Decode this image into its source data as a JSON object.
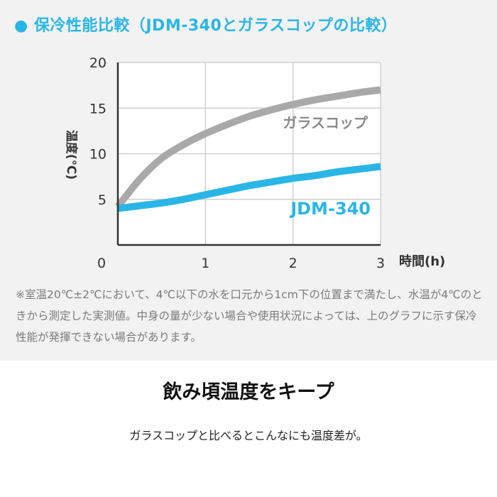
{
  "title_bullet": "●",
  "title": "保冷性能比較（JDM-340とガラスコップの比較）",
  "note": "※室温20℃±2℃において、4℃以下の水を口元から1cm下の位置まで満たし、水温が4℃のときから測定した実測値。中身の量が少ない場合や使用状況によっては、上のグラフに示す保冷性能が発揮できない場合があります。",
  "heading": "飲み頃温度をキープ",
  "subheading": "ガラスコップと比べるとこんなにも温度差が。",
  "chart_data": {
    "type": "line",
    "title": "保冷性能比較（JDM-340とガラスコップの比較）",
    "xlabel": "時間(h)",
    "ylabel": "温度(℃)",
    "xlim": [
      0,
      3
    ],
    "ylim": [
      0,
      20
    ],
    "x_ticks": [
      "0",
      "1",
      "2",
      "3"
    ],
    "y_ticks": [
      "5",
      "10",
      "15",
      "20"
    ],
    "grid": true,
    "series": [
      {
        "name": "ガラスコップ",
        "color": "#a9a9a9",
        "x": [
          0,
          0.25,
          0.5,
          0.75,
          1.0,
          1.25,
          1.5,
          1.75,
          2.0,
          2.25,
          2.5,
          2.75,
          3.0
        ],
        "y": [
          4.2,
          7.2,
          9.5,
          11.0,
          12.2,
          13.2,
          14.1,
          14.8,
          15.4,
          15.9,
          16.3,
          16.7,
          17.0
        ]
      },
      {
        "name": "JDM-340",
        "color": "#29b6e6",
        "x": [
          0,
          0.25,
          0.5,
          0.75,
          1.0,
          1.25,
          1.5,
          1.75,
          2.0,
          2.25,
          2.5,
          2.75,
          3.0
        ],
        "y": [
          4.0,
          4.3,
          4.6,
          5.0,
          5.5,
          6.0,
          6.5,
          6.9,
          7.3,
          7.6,
          8.0,
          8.3,
          8.6
        ]
      }
    ]
  }
}
